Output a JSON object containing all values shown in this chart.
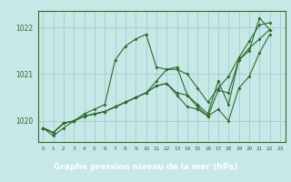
{
  "background_color": "#c8e8e8",
  "grid_color": "#a8d0d0",
  "line_color": "#2d6b2d",
  "title": "Graphe pression niveau de la mer (hPa)",
  "title_bg": "#2d6b2d",
  "title_fg": "#ffffff",
  "ylim": [
    1019.55,
    1022.35
  ],
  "xlim": [
    -0.5,
    23.5
  ],
  "yticks": [
    1020,
    1021,
    1022
  ],
  "xticks": [
    0,
    1,
    2,
    3,
    4,
    5,
    6,
    7,
    8,
    9,
    10,
    11,
    12,
    13,
    14,
    15,
    16,
    17,
    18,
    19,
    20,
    21,
    22,
    23
  ],
  "series": [
    [
      1019.85,
      1019.68,
      1019.85,
      1020.0,
      1020.15,
      1020.25,
      1020.35,
      1021.3,
      1021.6,
      1021.75,
      1021.85,
      1021.15,
      1021.1,
      1021.15,
      1020.55,
      1020.35,
      1020.15,
      1020.85,
      1020.35,
      1021.3,
      1021.5,
      1022.2,
      1021.95,
      null
    ],
    [
      1019.85,
      1019.75,
      1019.95,
      1020.0,
      1020.1,
      1020.15,
      1020.2,
      1020.3,
      1020.4,
      1020.5,
      1020.6,
      1020.85,
      1021.1,
      1021.1,
      1021.0,
      1020.7,
      1020.4,
      1020.7,
      1020.95,
      1021.35,
      1021.7,
      1022.05,
      1022.1,
      null
    ],
    [
      1019.85,
      1019.75,
      1019.95,
      1020.0,
      1020.1,
      1020.15,
      1020.2,
      1020.3,
      1020.4,
      1020.5,
      1020.6,
      1020.75,
      1020.8,
      1020.6,
      1020.55,
      1020.3,
      1020.1,
      1020.65,
      1020.6,
      1021.3,
      1021.55,
      1021.75,
      1021.95,
      null
    ],
    [
      1019.85,
      1019.75,
      1019.95,
      1020.0,
      1020.1,
      1020.15,
      1020.2,
      1020.3,
      1020.4,
      1020.5,
      1020.6,
      1020.75,
      1020.8,
      1020.55,
      1020.3,
      1020.25,
      1020.1,
      1020.25,
      1020.0,
      1020.7,
      1020.95,
      1021.45,
      1021.85,
      null
    ]
  ]
}
